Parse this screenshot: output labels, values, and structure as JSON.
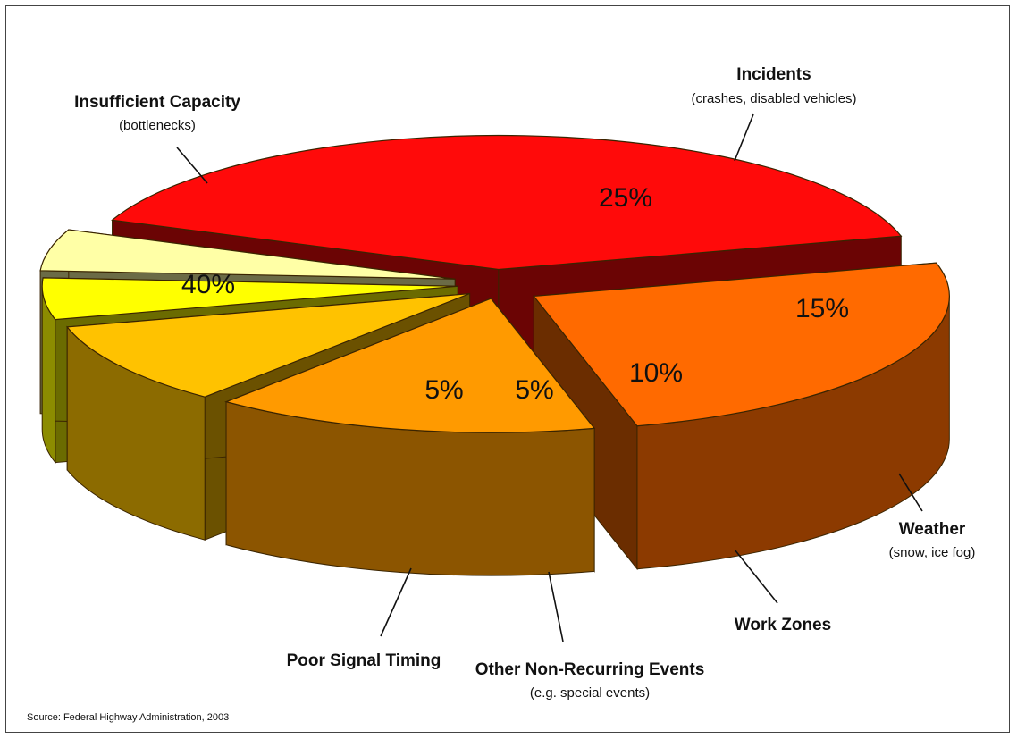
{
  "source": "Source:  Federal Highway Administration, 2003",
  "chart_data": {
    "type": "pie",
    "title": "",
    "slices": [
      {
        "label": "Insufficient Capacity",
        "sublabel": "(bottlenecks)",
        "value": 40,
        "value_label": "40%",
        "color": "#ff0a0a"
      },
      {
        "label": "Incidents",
        "sublabel": "(crashes, disabled vehicles)",
        "value": 25,
        "value_label": "25%",
        "color": "#ff6a00"
      },
      {
        "label": "Weather",
        "sublabel": "(snow, ice fog)",
        "value": 15,
        "value_label": "15%",
        "color": "#ff9a00"
      },
      {
        "label": "Work Zones",
        "sublabel": "",
        "value": 10,
        "value_label": "10%",
        "color": "#ffc200"
      },
      {
        "label": "Other Non-Recurring Events",
        "sublabel": "(e.g. special events)",
        "value": 5,
        "value_label": "5%",
        "color": "#ffff00"
      },
      {
        "label": "Poor Signal Timing",
        "sublabel": "",
        "value": 5,
        "value_label": "5%",
        "color": "#ffffa6"
      }
    ]
  }
}
